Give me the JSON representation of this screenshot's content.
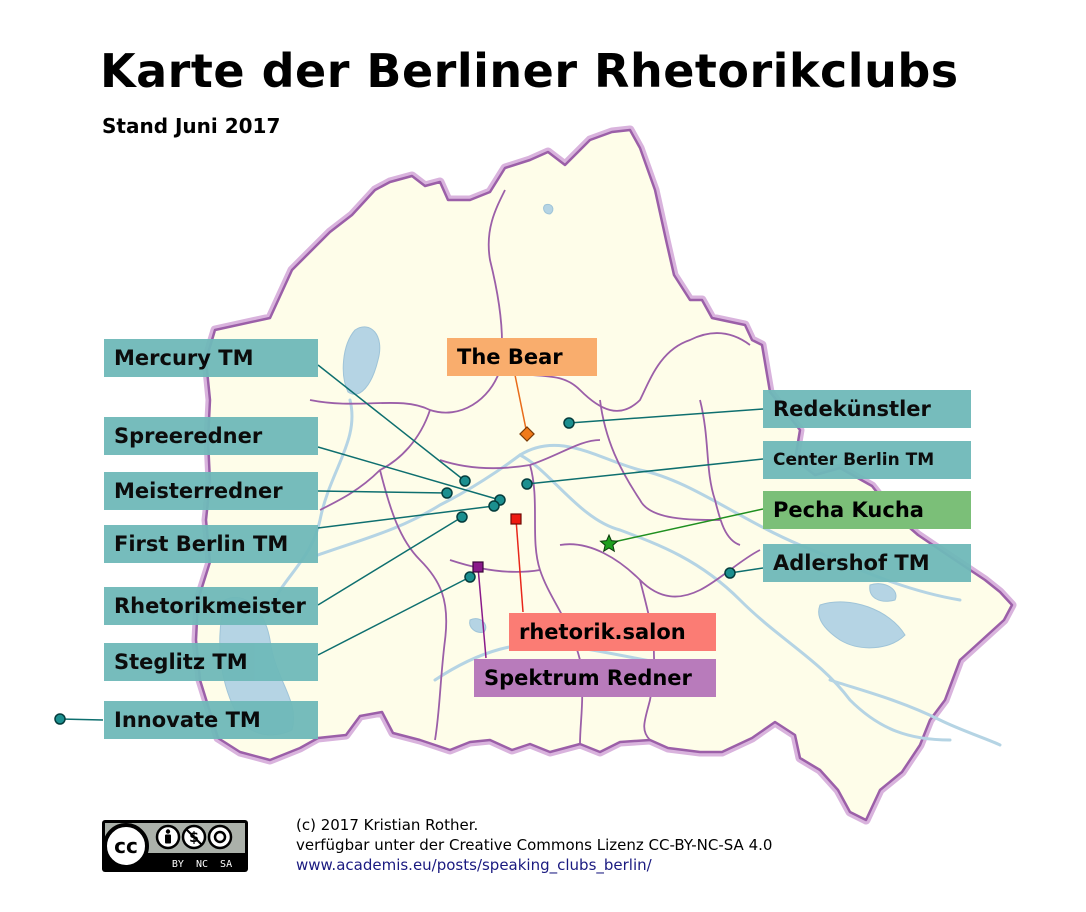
{
  "title": "Karte der Berliner Rhetorikclubs",
  "subtitle": "Stand Juni 2017",
  "colors": {
    "land": "#fefde9",
    "border": "#9b5fa8",
    "halo": "#d9b3dd",
    "water": "#b5d4e4",
    "teal": "#6fb9b9",
    "marker_teal": "#0e6f6f"
  },
  "clubs": [
    {
      "name": "Mercury TM",
      "style": "teal"
    },
    {
      "name": "Spreeredner",
      "style": "teal"
    },
    {
      "name": "Meisterredner",
      "style": "teal"
    },
    {
      "name": "First Berlin TM",
      "style": "teal"
    },
    {
      "name": "Rhetorikmeister",
      "style": "teal"
    },
    {
      "name": "Steglitz TM",
      "style": "teal"
    },
    {
      "name": "Innovate TM",
      "style": "teal"
    },
    {
      "name": "The Bear",
      "style": "orange"
    },
    {
      "name": "Redekünstler",
      "style": "teal"
    },
    {
      "name": "Center Berlin TM",
      "style": "teal"
    },
    {
      "name": "Pecha Kucha",
      "style": "green"
    },
    {
      "name": "Adlershof TM",
      "style": "teal"
    },
    {
      "name": "rhetorik.salon",
      "style": "red"
    },
    {
      "name": "Spektrum Redner",
      "style": "purple"
    }
  ],
  "license": {
    "logo_text": "cc",
    "logo_sub": "BY  NC  SA",
    "line1": "(c) 2017 Kristian Rother.",
    "line2": "verfügbar unter der Creative Commons Lizenz CC-BY-NC-SA 4.0",
    "line3": "www.academis.eu/posts/speaking_clubs_berlin/"
  }
}
